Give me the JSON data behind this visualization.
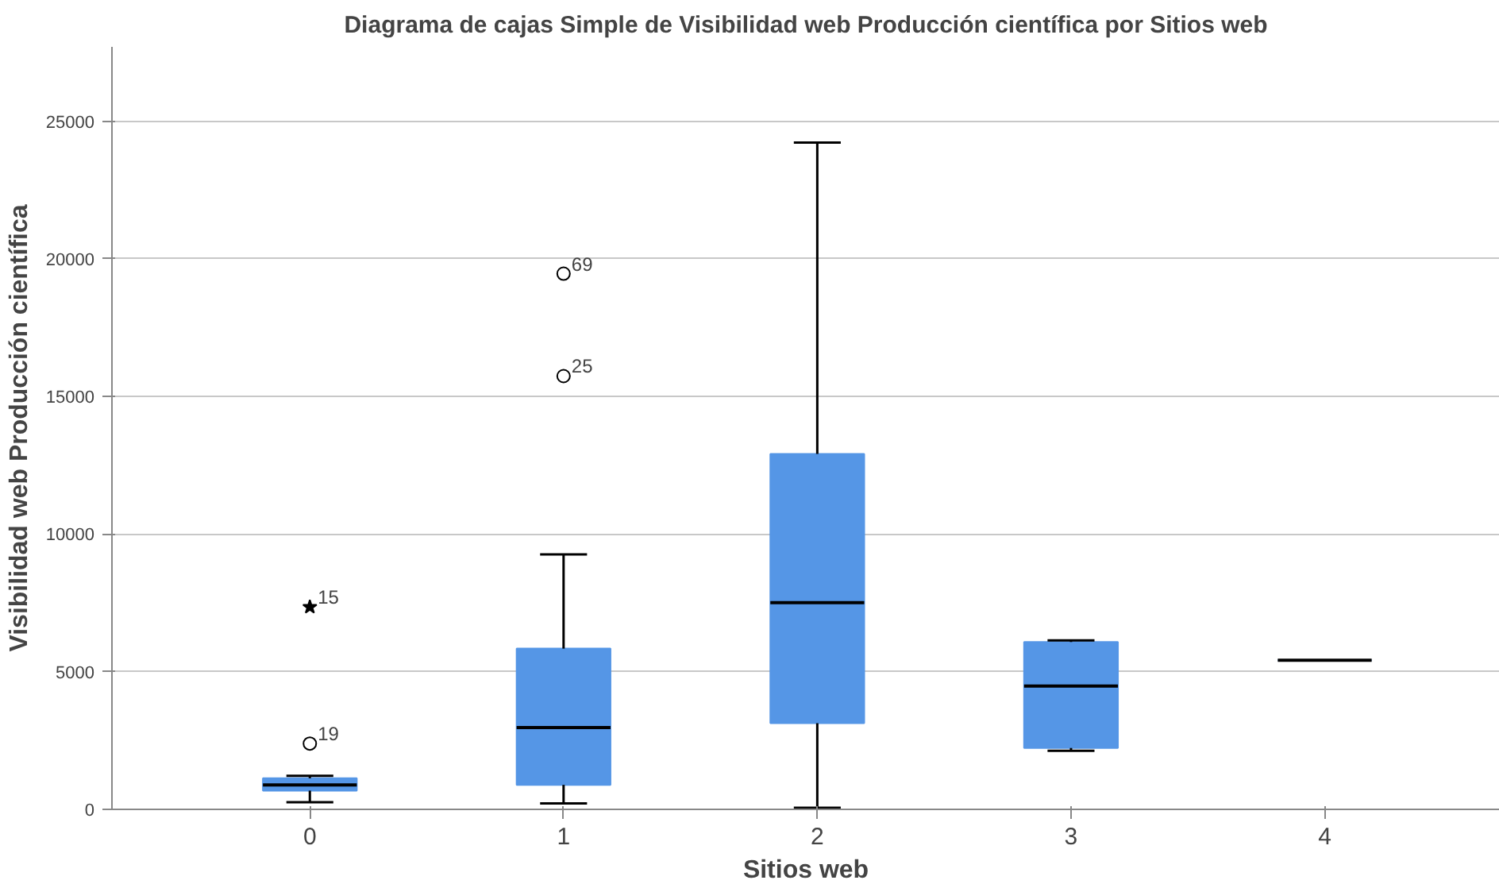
{
  "chart_data": {
    "type": "box",
    "title": "Diagrama de cajas Simple de Visibilidad web Producción científica por Sitios web",
    "xlabel": "Sitios web",
    "ylabel": "Visibilidad web Producción científica",
    "categories": [
      "0",
      "1",
      "2",
      "3",
      "4"
    ],
    "series": [
      {
        "color": "#5596e6",
        "boxes": [
          {
            "low": 260,
            "q1": 680,
            "median": 890,
            "q3": 1130,
            "high": 1220
          },
          {
            "low": 220,
            "q1": 890,
            "median": 2970,
            "q3": 5840,
            "high": 9260
          },
          {
            "low": 60,
            "q1": 3130,
            "median": 7510,
            "q3": 12910,
            "high": 24220
          },
          {
            "low": 2130,
            "q1": 2230,
            "median": 4480,
            "q3": 6080,
            "high": 6140
          },
          {
            "low": 5420,
            "q1": 5420,
            "median": 5420,
            "q3": 5420,
            "high": 5420
          }
        ]
      },
      {
        "type": "scatter",
        "marker": "circle",
        "color": "#000000",
        "x": [
          "0",
          "1",
          "1"
        ],
        "values": [
          2390,
          15740,
          19460
        ]
      },
      {
        "type": "scatter",
        "marker": "star",
        "color": "#000000",
        "x": [
          "0"
        ],
        "values": [
          7350
        ]
      }
    ],
    "annotations": [
      {
        "text": "15",
        "x": "0",
        "y": 7350
      },
      {
        "text": "19",
        "x": "0",
        "y": 2390
      },
      {
        "text": "69",
        "x": "1",
        "y": 19460
      },
      {
        "text": "25",
        "x": "1",
        "y": 15740
      }
    ],
    "ylim": [
      0,
      27700
    ],
    "yticks": [
      0,
      5000,
      10000,
      15000,
      20000,
      25000
    ],
    "grid": "y"
  }
}
